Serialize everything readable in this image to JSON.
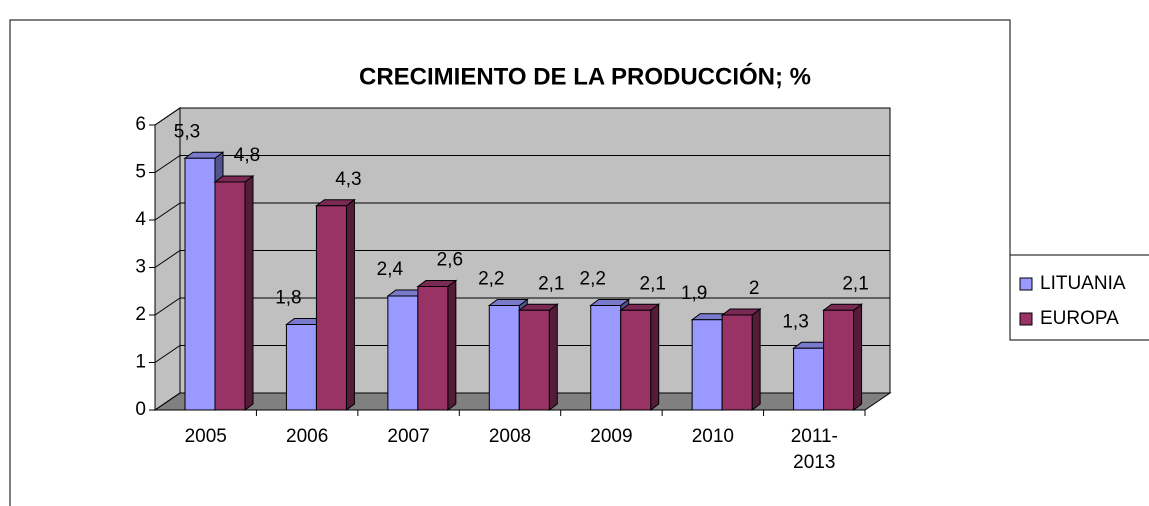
{
  "chart_data": {
    "type": "bar3d",
    "title": "CRECIMIENTO DE LA PRODUCCIÓN; %",
    "categories": [
      "2005",
      "2006",
      "2007",
      "2008",
      "2009",
      "2010",
      "2011-2013"
    ],
    "series": [
      {
        "name": "LITUANIA",
        "color": "#9999ff",
        "values": [
          5.3,
          1.8,
          2.4,
          2.2,
          2.2,
          1.9,
          1.3
        ],
        "value_labels": [
          "5,3",
          "1,8",
          "2,4",
          "2,2",
          "2,2",
          "1,9",
          "1,3"
        ]
      },
      {
        "name": "EUROPA",
        "color": "#993366",
        "values": [
          4.8,
          4.3,
          2.6,
          2.1,
          2.1,
          2,
          2.1
        ],
        "value_labels": [
          "4,8",
          "4,3",
          "2,6",
          "2,1",
          "2,1",
          "2",
          "2,1"
        ]
      }
    ],
    "ylim": [
      0,
      6
    ],
    "yticks": [
      0,
      1,
      2,
      3,
      4,
      5,
      6
    ],
    "grid": true,
    "legend": "right"
  }
}
